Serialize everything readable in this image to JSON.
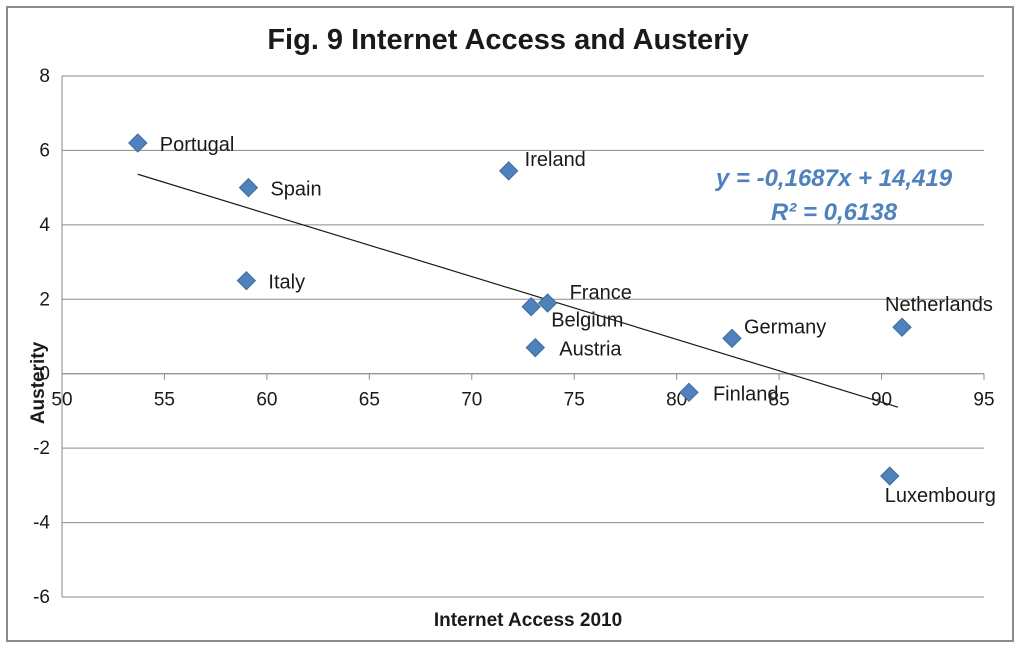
{
  "chart_data": {
    "type": "scatter",
    "title": "Fig. 9 Internet Access and Austeriy",
    "xlabel": "Internet Access  2010",
    "ylabel": "Austerity",
    "xlim": [
      50,
      95
    ],
    "ylim": [
      -6,
      8
    ],
    "xticks": [
      50,
      55,
      60,
      65,
      70,
      75,
      80,
      85,
      90,
      95
    ],
    "yticks": [
      -6,
      -4,
      -2,
      0,
      2,
      4,
      6,
      8
    ],
    "xtick_labels": [
      "50",
      "55",
      "60",
      "65",
      "70",
      "75",
      "80",
      "85",
      "90",
      "95"
    ],
    "ytick_labels": [
      "-6",
      "-4",
      "-2",
      "0",
      "2",
      "4",
      "6",
      "8"
    ],
    "grid": "horizontal",
    "marker": "diamond",
    "marker_color": "#4f81bd",
    "points": [
      {
        "label": "Portugal",
        "x": 53.7,
        "y": 6.2
      },
      {
        "label": "Spain",
        "x": 59.1,
        "y": 5.0
      },
      {
        "label": "Italy",
        "x": 59.0,
        "y": 2.5
      },
      {
        "label": "Ireland",
        "x": 71.8,
        "y": 5.45
      },
      {
        "label": "France",
        "x": 73.7,
        "y": 1.9
      },
      {
        "label": "Belgium",
        "x": 72.9,
        "y": 1.8
      },
      {
        "label": "Austria",
        "x": 73.1,
        "y": 0.7
      },
      {
        "label": "Germany",
        "x": 82.7,
        "y": 0.95
      },
      {
        "label": "Finland",
        "x": 80.6,
        "y": -0.5
      },
      {
        "label": "Netherlands",
        "x": 91.0,
        "y": 1.25
      },
      {
        "label": "Luxembourg",
        "x": 90.4,
        "y": -2.75
      }
    ],
    "trendline": {
      "x": [
        53.7,
        90.8
      ],
      "slope": -0.1687,
      "intercept": 14.419
    },
    "annotations": [
      "y = -0,1687x + 14,419",
      "R² = 0,6138"
    ]
  }
}
